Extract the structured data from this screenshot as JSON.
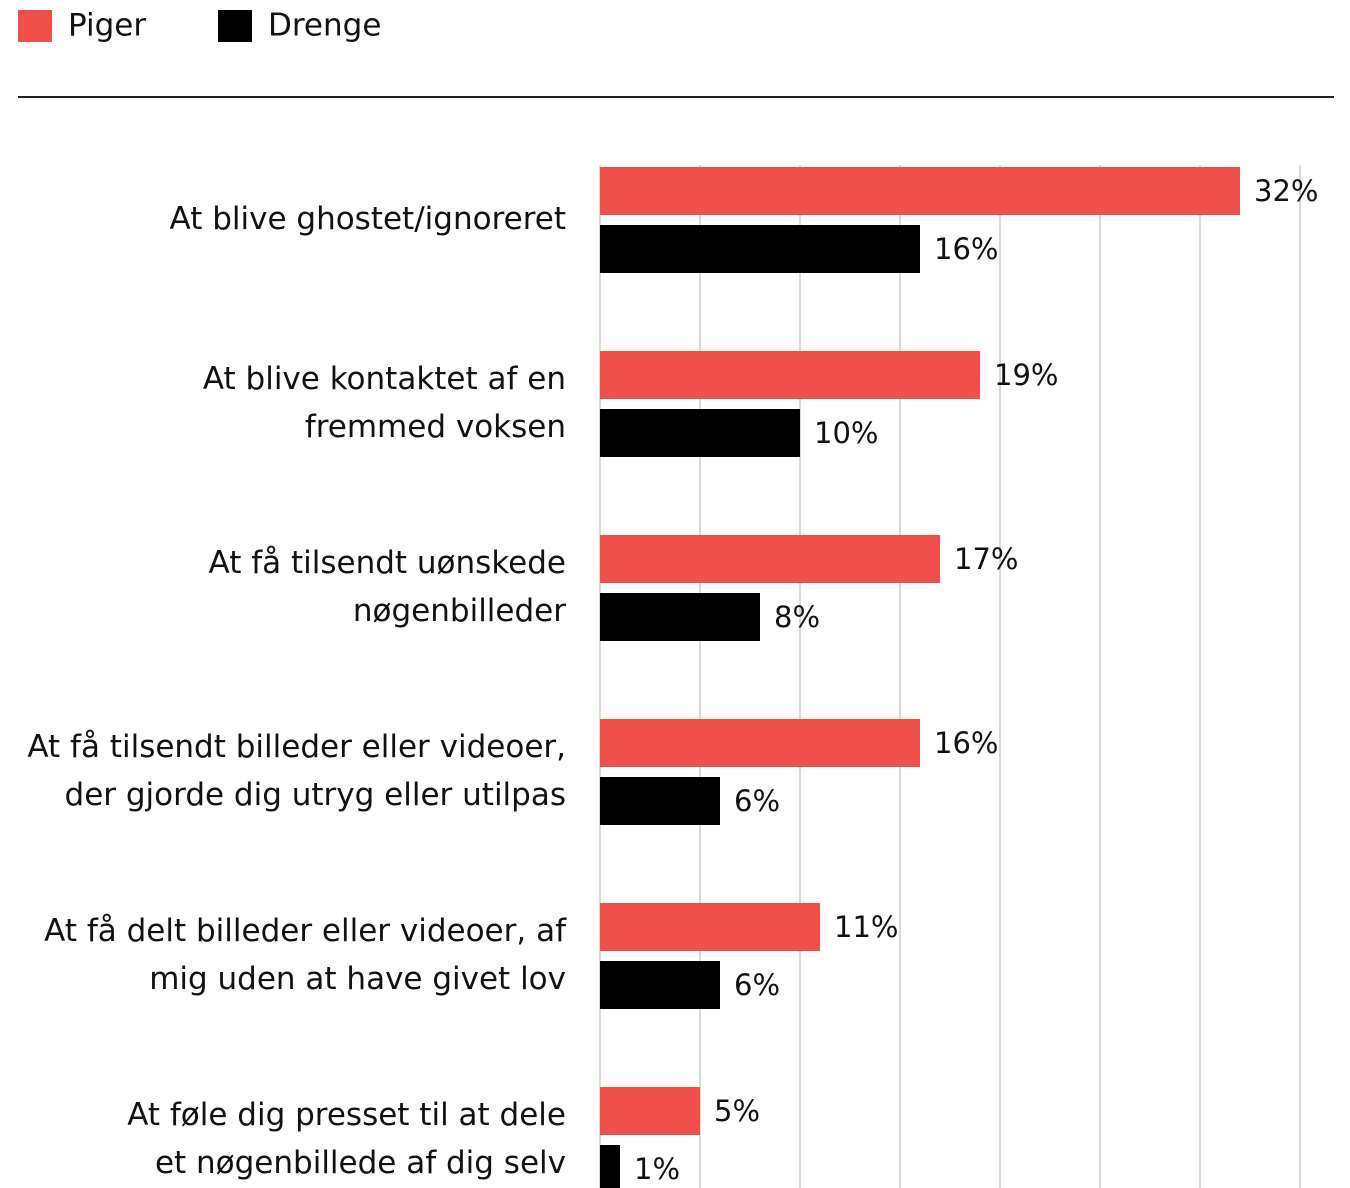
{
  "chart_data": {
    "type": "bar",
    "orientation": "horizontal",
    "categories": [
      [
        "At blive ghostet/ignoreret"
      ],
      [
        "At blive kontaktet af en",
        "fremmed voksen"
      ],
      [
        "At få tilsendt uønskede",
        "nøgenbilleder"
      ],
      [
        "At få tilsendt billeder eller videoer,",
        "der gjorde dig utryg eller utilpas"
      ],
      [
        "At få delt billeder eller videoer, af",
        "mig uden at have givet lov"
      ],
      [
        "At føle dig presset til at dele",
        "et nøgenbillede af dig selv"
      ]
    ],
    "series": [
      {
        "name": "Piger",
        "color": "#f0504a",
        "values": [
          32,
          19,
          17,
          16,
          11,
          5
        ],
        "value_labels": [
          "32%",
          "19%",
          "17%",
          "16%",
          "11%",
          "5%"
        ]
      },
      {
        "name": "Drenge",
        "color": "#000000",
        "values": [
          16,
          10,
          8,
          6,
          6,
          1
        ],
        "value_labels": [
          "16%",
          "10%",
          "8%",
          "6%",
          "6%",
          "1%"
        ]
      }
    ],
    "xlim": [
      0,
      35
    ],
    "xticks": [
      0,
      5,
      10,
      15,
      20,
      25,
      30,
      35
    ],
    "grid": true,
    "legend": "top-left"
  }
}
